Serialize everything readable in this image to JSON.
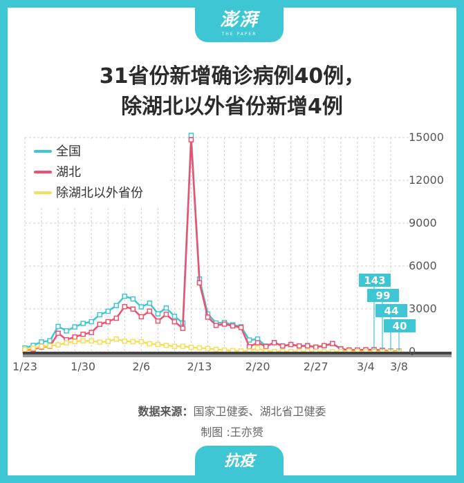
{
  "header": {
    "logo_text": "澎湃",
    "logo_sub": "THE PAPER"
  },
  "title": {
    "line1": "31省份新增确诊病例40例，",
    "line2": "除湖北以外省份新增4例"
  },
  "source": {
    "label": "数据来源：",
    "text": "国家卫健委、湖北省卫健委",
    "author": "制图 :王亦赟"
  },
  "footer": {
    "tag": "抗疫"
  },
  "colors": {
    "national": "#3fc6d4",
    "hubei": "#f0506e",
    "other": "#f7de5a",
    "brand": "#3fc6d4"
  },
  "chart_data": {
    "type": "line",
    "x": [
      "1/23",
      "1/24",
      "1/25",
      "1/26",
      "1/27",
      "1/28",
      "1/29",
      "1/30",
      "1/31",
      "2/1",
      "2/2",
      "2/3",
      "2/4",
      "2/5",
      "2/6",
      "2/7",
      "2/8",
      "2/9",
      "2/10",
      "2/11",
      "2/12",
      "2/13",
      "2/14",
      "2/15",
      "2/16",
      "2/17",
      "2/18",
      "2/19",
      "2/20",
      "2/21",
      "2/22",
      "2/23",
      "2/24",
      "2/25",
      "2/26",
      "2/27",
      "2/28",
      "2/29",
      "3/1",
      "3/2",
      "3/3",
      "3/4",
      "3/5",
      "3/6",
      "3/7",
      "3/8"
    ],
    "xticks": [
      "1/23",
      "1/30",
      "2/6",
      "2/13",
      "2/20",
      "2/27",
      "3/4",
      "3/8"
    ],
    "yticks": [
      0,
      3000,
      6000,
      9000,
      12000,
      15000
    ],
    "ylim": [
      0,
      15000
    ],
    "legend_position": "top-left",
    "grid": true,
    "series": [
      {
        "name": "全国",
        "values": [
          259,
          444,
          688,
          769,
          1771,
          1459,
          1737,
          1982,
          2102,
          2590,
          2829,
          3235,
          3887,
          3694,
          3143,
          3399,
          2656,
          3062,
          2478,
          2015,
          15152,
          5090,
          2641,
          2009,
          2048,
          1886,
          1749,
          820,
          889,
          397,
          648,
          409,
          508,
          406,
          433,
          327,
          427,
          573,
          202,
          125,
          119,
          139,
          143,
          99,
          44,
          40
        ]
      },
      {
        "name": "湖北",
        "values": [
          105,
          180,
          323,
          371,
          1291,
          840,
          1032,
          1220,
          1347,
          1921,
          2103,
          2345,
          3156,
          2987,
          2447,
          2841,
          2147,
          2618,
          2097,
          1638,
          14840,
          4823,
          2420,
          1843,
          1933,
          1807,
          1693,
          349,
          631,
          366,
          630,
          398,
          499,
          401,
          409,
          318,
          423,
          570,
          196,
          114,
          115,
          134,
          139,
          90,
          41,
          36
        ]
      },
      {
        "name": "除湖北以外省份",
        "values": [
          154,
          264,
          365,
          398,
          480,
          619,
          705,
          762,
          755,
          669,
          726,
          890,
          731,
          707,
          696,
          558,
          509,
          444,
          381,
          377,
          312,
          267,
          221,
          166,
          115,
          79,
          56,
          45,
          258,
          31,
          18,
          11,
          9,
          5,
          24,
          9,
          4,
          3,
          6,
          11,
          4,
          5,
          4,
          9,
          3,
          4
        ]
      }
    ],
    "annotations": [
      "143",
      "99",
      "44",
      "40"
    ]
  }
}
